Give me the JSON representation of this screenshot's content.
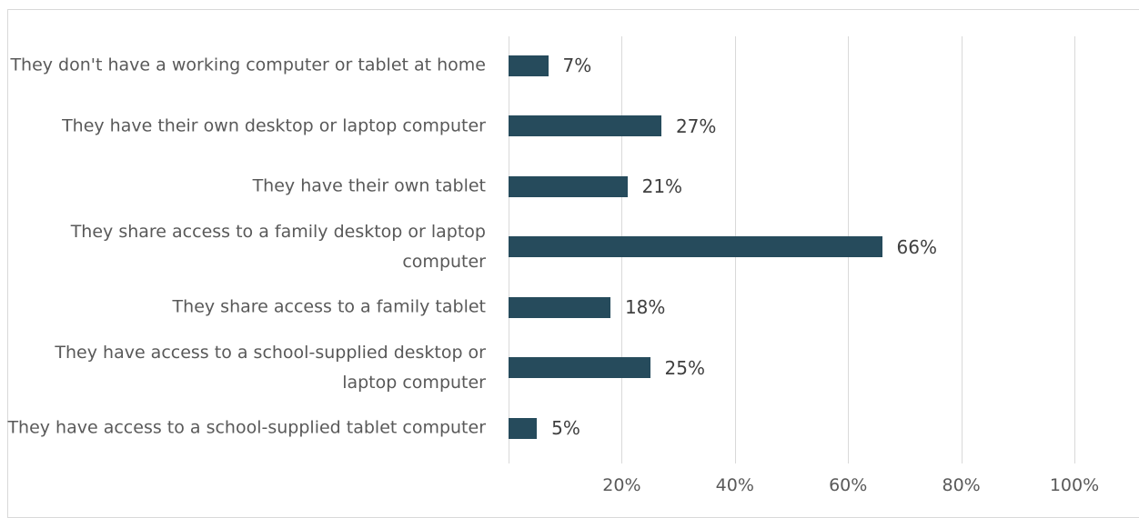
{
  "chart_data": {
    "type": "bar",
    "orientation": "horizontal",
    "categories": [
      "They don't have a working computer or tablet at home",
      "They have their own desktop or laptop computer",
      "They have their own tablet",
      "They share access to a family desktop or laptop computer",
      "They share access to a family tablet",
      "They have access to a school-supplied desktop or laptop computer",
      "They have access to a school-supplied tablet computer"
    ],
    "values": [
      7,
      27,
      21,
      66,
      18,
      25,
      5
    ],
    "value_labels": [
      "7%",
      "27%",
      "21%",
      "66%",
      "18%",
      "25%",
      "5%"
    ],
    "color": "#264b5c",
    "xlim": [
      0,
      100
    ],
    "xticks": [
      {
        "value": 20,
        "label": "20%"
      },
      {
        "value": 40,
        "label": "40%"
      },
      {
        "value": 60,
        "label": "60%"
      },
      {
        "value": 80,
        "label": "80%"
      },
      {
        "value": 100,
        "label": "100%"
      }
    ],
    "grid": true
  }
}
